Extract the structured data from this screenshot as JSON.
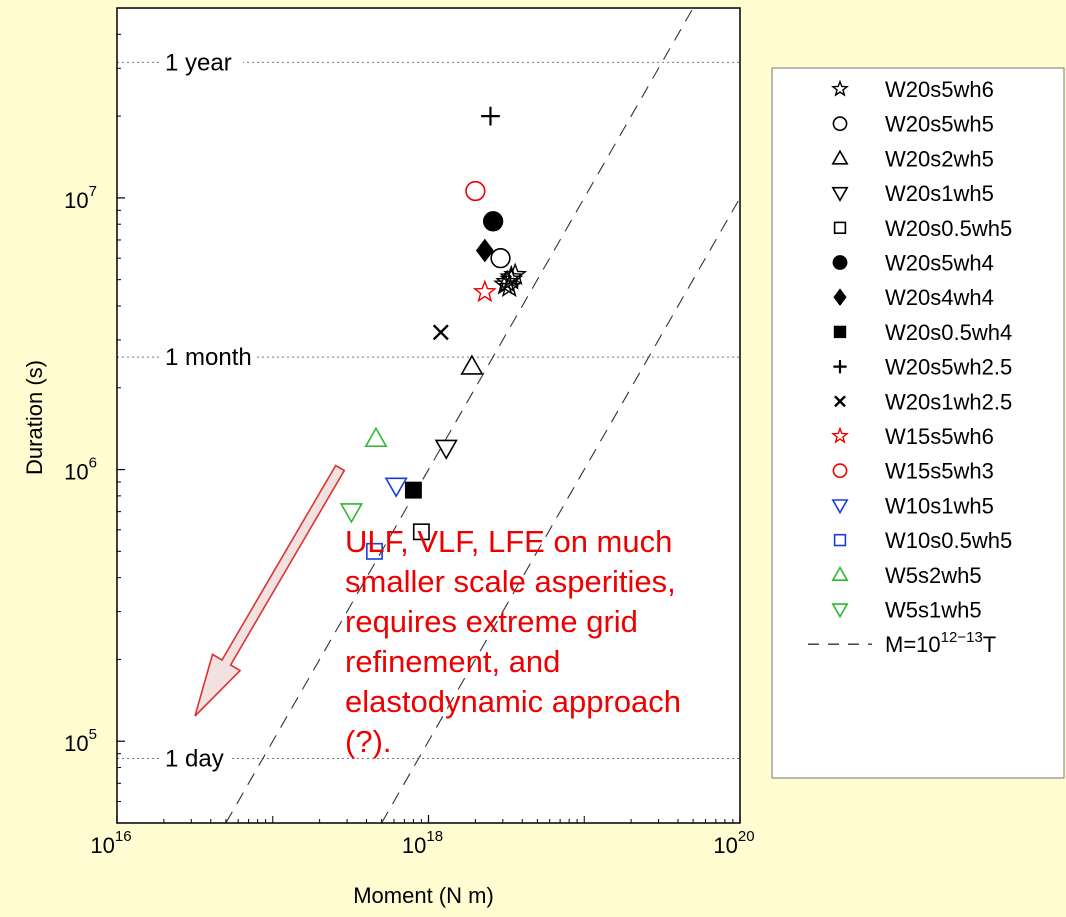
{
  "chart_data": {
    "type": "scatter",
    "xlabel": "Moment (N m)",
    "ylabel": "Duration (s)",
    "x_scale": "log",
    "y_scale": "log",
    "xlim": [
      1e+16,
      1e+20
    ],
    "ylim": [
      50000,
      50000000
    ],
    "x_ticks": [
      {
        "base": "10",
        "exp": "16",
        "value": 1e+16
      },
      {
        "base": "10",
        "exp": "18",
        "value": 1e+18
      },
      {
        "base": "10",
        "exp": "20",
        "value": 1e+20
      }
    ],
    "y_ticks": [
      {
        "base": "10",
        "exp": "5",
        "value": 100000.0
      },
      {
        "base": "10",
        "exp": "6",
        "value": 1000000.0
      },
      {
        "base": "10",
        "exp": "7",
        "value": 10000000.0
      }
    ],
    "reference_lines": [
      {
        "label": "1 year",
        "value": 31536000
      },
      {
        "label": "1 month",
        "value": 2592000
      },
      {
        "label": "1 day",
        "value": 86400
      }
    ],
    "scaling_lines": {
      "legend_label_base": "M=10",
      "legend_label_exp": "12−13",
      "legend_label_tail": "T",
      "coefficients": [
        1000000000000.0,
        10000000000000.0
      ]
    },
    "series": [
      {
        "name": "W20s5wh6",
        "marker": "star",
        "color": "#000000",
        "filled": false,
        "points": [
          [
            3.3e+18,
            4700000.0
          ],
          [
            3.1e+18,
            4800000.0
          ],
          [
            3.4e+18,
            5100000.0
          ],
          [
            3.6e+18,
            5200000.0
          ],
          [
            3.4e+18,
            5000000.0
          ],
          [
            3.2e+18,
            4900000.0
          ]
        ]
      },
      {
        "name": "W20s5wh5",
        "marker": "circle",
        "color": "#000000",
        "filled": false,
        "points": [
          [
            2.9e+18,
            6000000.0
          ]
        ]
      },
      {
        "name": "W20s2wh5",
        "marker": "triangle-up",
        "color": "#000000",
        "filled": false,
        "points": [
          [
            1.9e+18,
            2400000.0
          ]
        ]
      },
      {
        "name": "W20s1wh5",
        "marker": "triangle-down",
        "color": "#000000",
        "filled": false,
        "points": [
          [
            1.3e+18,
            1200000.0
          ]
        ]
      },
      {
        "name": "W20s0.5wh5",
        "marker": "square",
        "color": "#000000",
        "filled": false,
        "points": [
          [
            9e+17,
            590000.0
          ]
        ]
      },
      {
        "name": "W20s5wh4",
        "marker": "circle",
        "color": "#000000",
        "filled": true,
        "points": [
          [
            2.6e+18,
            8200000.0
          ]
        ]
      },
      {
        "name": "W20s4wh4",
        "marker": "diamond",
        "color": "#000000",
        "filled": true,
        "points": [
          [
            2.3e+18,
            6400000.0
          ]
        ]
      },
      {
        "name": "W20s0.5wh4",
        "marker": "square",
        "color": "#000000",
        "filled": true,
        "points": [
          [
            8e+17,
            840000.0
          ]
        ]
      },
      {
        "name": "W20s5wh2.5",
        "marker": "plus",
        "color": "#000000",
        "filled": false,
        "points": [
          [
            2.5e+18,
            20000000.0
          ]
        ]
      },
      {
        "name": "W20s1wh2.5",
        "marker": "x",
        "color": "#000000",
        "filled": false,
        "points": [
          [
            1.2e+18,
            3200000.0
          ]
        ]
      },
      {
        "name": "W15s5wh6",
        "marker": "star",
        "color": "#EE0000",
        "filled": false,
        "points": [
          [
            2.3e+18,
            4500000.0
          ]
        ]
      },
      {
        "name": "W15s5wh3",
        "marker": "circle",
        "color": "#EE0000",
        "filled": false,
        "points": [
          [
            2e+18,
            10600000.0
          ]
        ]
      },
      {
        "name": "W10s1wh5",
        "marker": "triangle-down",
        "color": "#1A3FD8",
        "filled": false,
        "points": [
          [
            6.2e+17,
            870000.0
          ]
        ]
      },
      {
        "name": "W10s0.5wh5",
        "marker": "square",
        "color": "#1A3FD8",
        "filled": false,
        "points": [
          [
            4.5e+17,
            500000.0
          ]
        ]
      },
      {
        "name": "W5s2wh5",
        "marker": "triangle-up",
        "color": "#2FB82F",
        "filled": false,
        "points": [
          [
            4.6e+17,
            1300000.0
          ]
        ]
      },
      {
        "name": "W5s1wh5",
        "marker": "triangle-down",
        "color": "#2FB82F",
        "filled": false,
        "points": [
          [
            3.2e+17,
            700000.0
          ]
        ]
      }
    ]
  },
  "annotation": {
    "lines": [
      "ULF, VLF, LFE on much",
      "smaller scale asperities,",
      "requires extreme grid",
      "refinement, and",
      "elastodynamic approach",
      "(?)."
    ],
    "color": "#EE0000"
  },
  "colors": {
    "background": "#FFFDD1",
    "arrow_fill": "#F2E1E1",
    "arrow_stroke": "#DD3333",
    "black": "#000000"
  }
}
